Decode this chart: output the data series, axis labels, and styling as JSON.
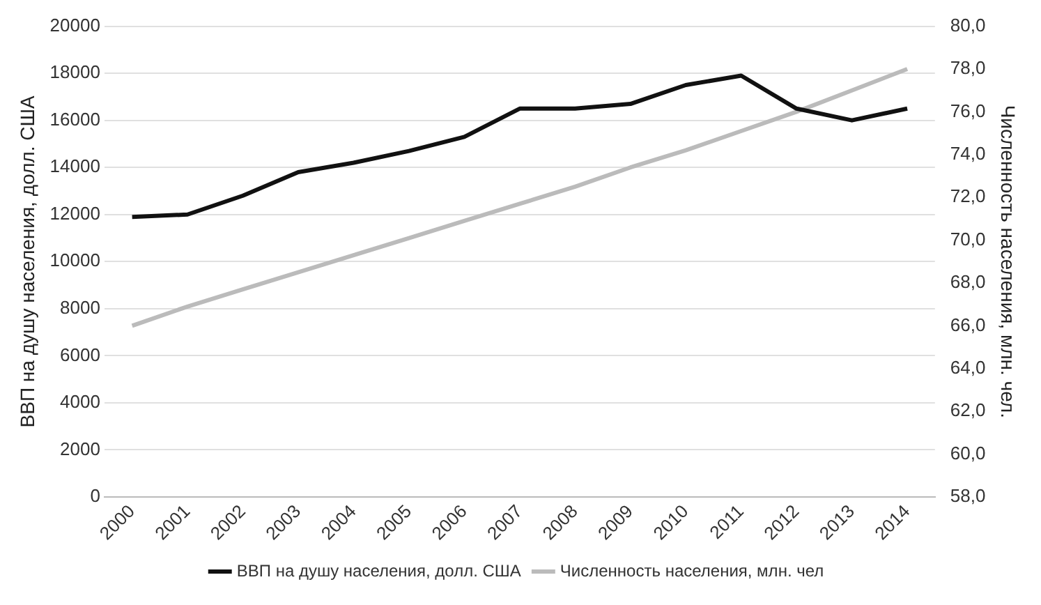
{
  "chart_data": {
    "type": "line",
    "ylabel": "ВВП на душу населения, долл. США",
    "y2label": "Численность населения, млн. чел.",
    "categories": [
      "2000",
      "2001",
      "2002",
      "2003",
      "2004",
      "2005",
      "2006",
      "2007",
      "2008",
      "2009",
      "2010",
      "2011",
      "2012",
      "2013",
      "2014"
    ],
    "series": [
      {
        "name": "ВВП на душу населения, долл. США",
        "color": "#111111",
        "values": [
          11900,
          12000,
          12800,
          13800,
          14200,
          14700,
          15300,
          16500,
          16500,
          16700,
          17500,
          17900,
          16500,
          16000,
          16500
        ]
      },
      {
        "name": "Численность населения, млн. чел",
        "color": "#bbbbbb",
        "axis": "y2",
        "values": [
          66.0,
          66.9,
          67.7,
          68.5,
          69.3,
          70.1,
          70.9,
          71.7,
          72.5,
          73.4,
          74.2,
          75.1,
          76.0,
          77.0,
          78.0
        ]
      }
    ],
    "ylim": [
      0,
      20000
    ],
    "yticks": [
      0,
      2000,
      4000,
      6000,
      8000,
      10000,
      12000,
      14000,
      16000,
      18000,
      20000
    ],
    "y2lim": [
      58,
      80
    ],
    "y2ticks": [
      {
        "value": 58,
        "label": "58,0"
      },
      {
        "value": 60,
        "label": "60,0"
      },
      {
        "value": 62,
        "label": "62,0"
      },
      {
        "value": 64,
        "label": "64,0"
      },
      {
        "value": 66,
        "label": "66,0"
      },
      {
        "value": 68,
        "label": "68,0"
      },
      {
        "value": 70,
        "label": "70,0"
      },
      {
        "value": 72,
        "label": "72,0"
      },
      {
        "value": 74,
        "label": "74,0"
      },
      {
        "value": 76,
        "label": "76,0"
      },
      {
        "value": 78,
        "label": "78,0"
      },
      {
        "value": 80,
        "label": "80,0"
      }
    ],
    "grid": "y",
    "legend": "bottom",
    "marker": "none",
    "line_style": "solid"
  }
}
